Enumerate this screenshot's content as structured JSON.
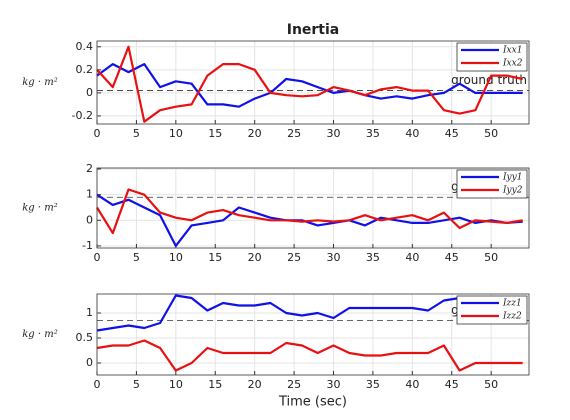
{
  "chart_data": [
    {
      "type": "line",
      "title": "Inertia",
      "ylabel": "kg · m²",
      "x": [
        0,
        2,
        4,
        6,
        8,
        10,
        12,
        14,
        16,
        18,
        20,
        22,
        24,
        26,
        28,
        30,
        32,
        34,
        36,
        38,
        40,
        42,
        44,
        46,
        48,
        50,
        52,
        54
      ],
      "series": [
        {
          "name": "Ixx1",
          "color": "#1010e8",
          "values": [
            0.15,
            0.25,
            0.18,
            0.25,
            0.05,
            0.1,
            0.08,
            -0.1,
            -0.1,
            -0.12,
            -0.05,
            0.0,
            0.12,
            0.1,
            0.05,
            0.0,
            0.02,
            -0.02,
            -0.05,
            -0.03,
            -0.05,
            -0.02,
            0.0,
            0.08,
            0.0,
            0.0,
            0.0,
            0.0
          ]
        },
        {
          "name": "Ixx2",
          "color": "#e81010",
          "values": [
            0.2,
            0.05,
            0.4,
            -0.25,
            -0.15,
            -0.12,
            -0.1,
            0.15,
            0.25,
            0.25,
            0.2,
            0.0,
            -0.02,
            -0.03,
            -0.02,
            0.05,
            0.02,
            -0.02,
            0.03,
            0.05,
            0.02,
            0.02,
            -0.15,
            -0.18,
            -0.15,
            0.15,
            0.15,
            0.12
          ]
        }
      ],
      "xlim": [
        0,
        54.8
      ],
      "xticks": [
        0,
        5,
        10,
        15,
        20,
        25,
        30,
        35,
        40,
        45,
        50
      ],
      "ylim": [
        -0.27,
        0.45
      ],
      "yticks": [
        -0.2,
        0,
        0.2,
        0.4
      ],
      "grid": true,
      "legend": "northeast",
      "annotations": [
        {
          "text": "ground truth",
          "value": 0.02
        }
      ]
    },
    {
      "type": "line",
      "ylabel": "kg · m²",
      "x": [
        0,
        2,
        4,
        6,
        8,
        10,
        12,
        14,
        16,
        18,
        20,
        22,
        24,
        26,
        28,
        30,
        32,
        34,
        36,
        38,
        40,
        42,
        44,
        46,
        48,
        50,
        52,
        54
      ],
      "series": [
        {
          "name": "Iyy1",
          "color": "#1010e8",
          "values": [
            1.0,
            0.6,
            0.8,
            0.5,
            0.2,
            -1.0,
            -0.2,
            -0.1,
            0.0,
            0.5,
            0.3,
            0.1,
            0.0,
            0.0,
            -0.2,
            -0.1,
            0.0,
            -0.2,
            0.1,
            0.0,
            -0.1,
            -0.1,
            0.0,
            0.1,
            -0.1,
            0.0,
            -0.1,
            -0.05
          ]
        },
        {
          "name": "Iyy2",
          "color": "#e81010",
          "values": [
            0.5,
            -0.5,
            1.2,
            1.0,
            0.3,
            0.1,
            0.0,
            0.3,
            0.4,
            0.2,
            0.1,
            0.0,
            0.0,
            -0.05,
            0.0,
            -0.05,
            0.0,
            0.2,
            0.0,
            0.1,
            0.2,
            0.0,
            0.3,
            -0.3,
            0.0,
            -0.05,
            -0.1,
            0.0
          ]
        }
      ],
      "xlim": [
        0,
        54.8
      ],
      "xticks": [
        0,
        5,
        10,
        15,
        20,
        25,
        30,
        35,
        40,
        45,
        50
      ],
      "ylim": [
        -1.08,
        2.04
      ],
      "yticks": [
        -1,
        0,
        1,
        2
      ],
      "grid": true,
      "legend": "northeast",
      "annotations": [
        {
          "text": "ground truth",
          "value": 0.9
        }
      ]
    },
    {
      "type": "line",
      "ylabel": "kg · m²",
      "xlabel": "Time (sec)",
      "x": [
        0,
        2,
        4,
        6,
        8,
        10,
        12,
        14,
        16,
        18,
        20,
        22,
        24,
        26,
        28,
        30,
        32,
        34,
        36,
        38,
        40,
        42,
        44,
        46,
        48,
        50,
        52,
        54
      ],
      "series": [
        {
          "name": "Izz1",
          "color": "#1010e8",
          "values": [
            0.65,
            0.7,
            0.75,
            0.7,
            0.8,
            1.35,
            1.3,
            1.05,
            1.2,
            1.15,
            1.15,
            1.2,
            1.0,
            0.95,
            1.0,
            0.9,
            1.1,
            1.1,
            1.1,
            1.1,
            1.1,
            1.05,
            1.25,
            1.3,
            1.3,
            1.25,
            1.25,
            1.25
          ]
        },
        {
          "name": "Izz2",
          "color": "#e81010",
          "values": [
            0.3,
            0.35,
            0.35,
            0.45,
            0.3,
            -0.15,
            0.0,
            0.3,
            0.2,
            0.2,
            0.2,
            0.2,
            0.4,
            0.35,
            0.2,
            0.35,
            0.2,
            0.15,
            0.15,
            0.2,
            0.2,
            0.2,
            0.35,
            -0.15,
            0.0,
            0.0,
            0.0,
            0.0
          ]
        }
      ],
      "xlim": [
        0,
        54.8
      ],
      "xticks": [
        0,
        5,
        10,
        15,
        20,
        25,
        30,
        35,
        40,
        45,
        50
      ],
      "ylim": [
        -0.24,
        1.38
      ],
      "yticks": [
        0,
        0.5,
        1
      ],
      "grid": true,
      "legend": "northeast",
      "annotations": [
        {
          "text": "ground truth",
          "value": 0.85
        }
      ]
    }
  ]
}
